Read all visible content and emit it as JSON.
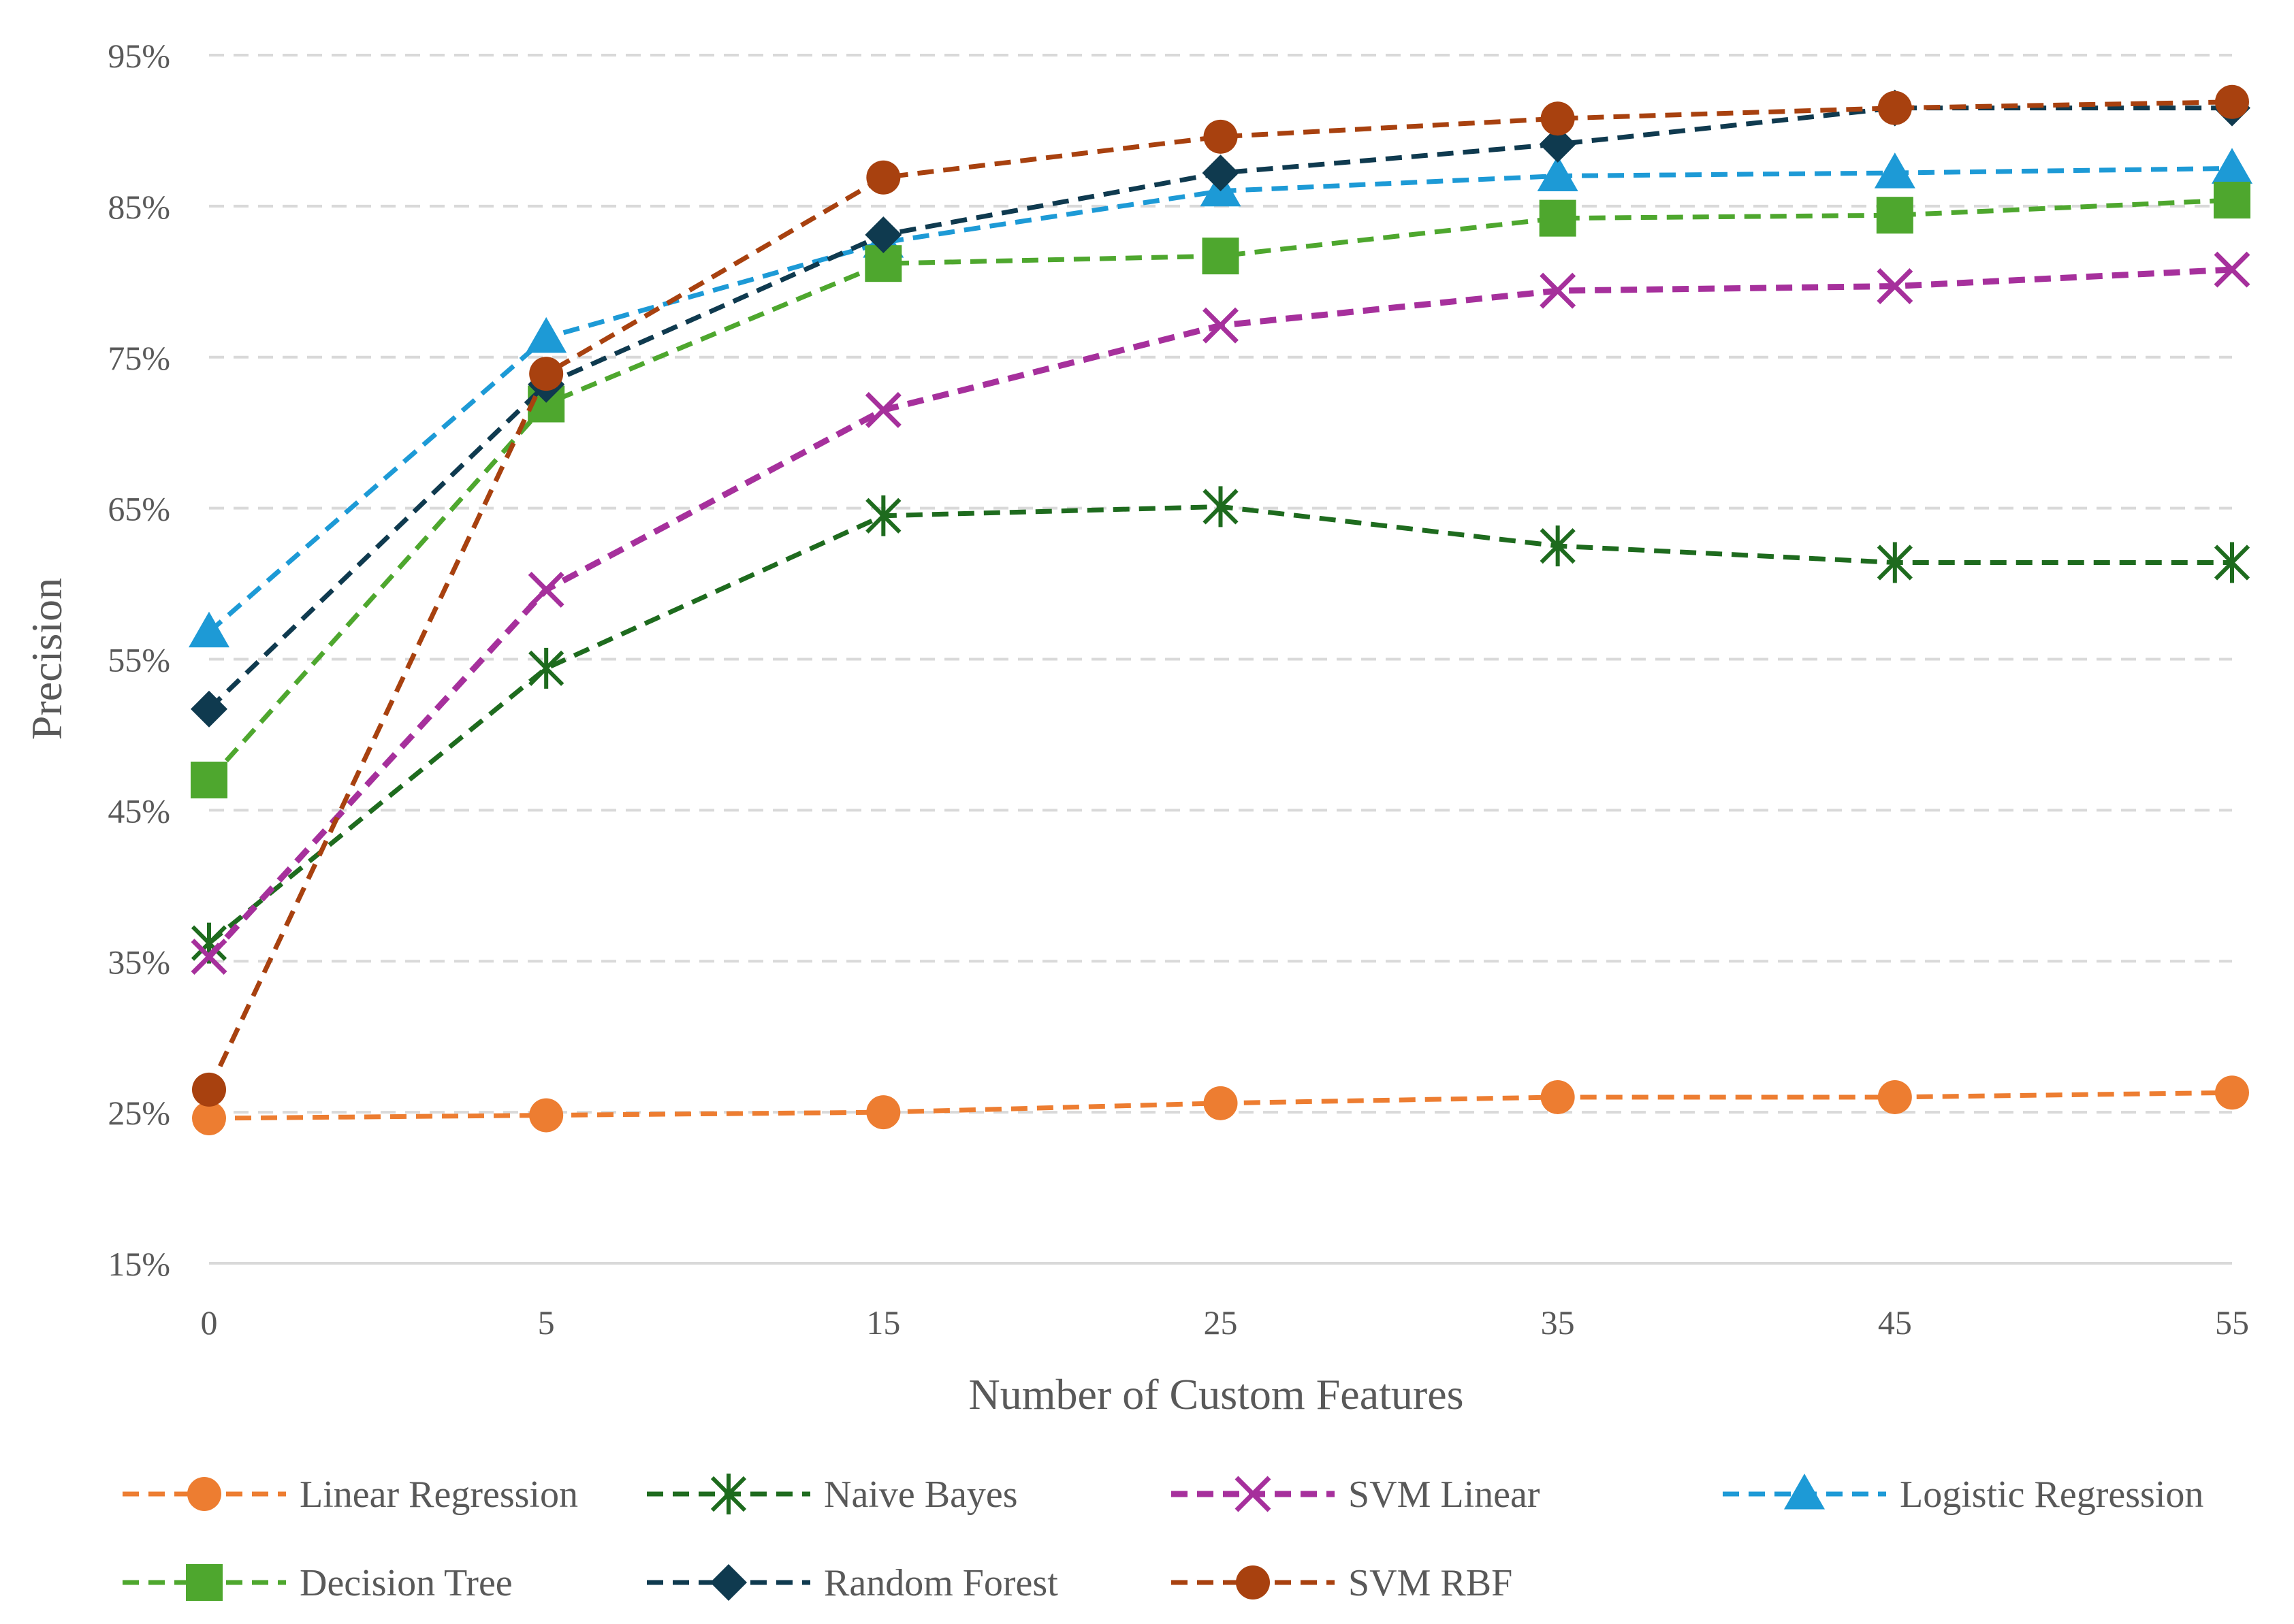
{
  "chart_data": {
    "type": "line",
    "title": "",
    "xlabel": "Number of Custom Features",
    "ylabel": "Precision",
    "categories": [
      "0",
      "5",
      "15",
      "25",
      "35",
      "45",
      "55"
    ],
    "ylim": [
      15,
      95
    ],
    "yticks": [
      15,
      25,
      35,
      45,
      55,
      65,
      75,
      85,
      95
    ],
    "ytick_labels": [
      "15%",
      "25%",
      "35%",
      "45%",
      "55%",
      "65%",
      "75%",
      "85%",
      "95%"
    ],
    "grid": "horizontal dashed",
    "legend_position": "bottom",
    "series": [
      {
        "name": "Linear Regression",
        "color": "#ED7D31",
        "marker": "circle",
        "values": [
          24.6,
          24.8,
          25.0,
          25.6,
          26.0,
          26.0,
          26.3
        ]
      },
      {
        "name": "Naive Bayes",
        "color": "#1E6B1E",
        "marker": "asterisk",
        "values": [
          36.2,
          54.4,
          64.5,
          65.1,
          62.5,
          61.4,
          61.4
        ]
      },
      {
        "name": "SVM Linear",
        "color": "#A6309C",
        "marker": "x",
        "values": [
          35.3,
          59.6,
          71.5,
          77.1,
          79.4,
          79.7,
          80.8
        ]
      },
      {
        "name": "Logistic Regression",
        "color": "#1D9AD6",
        "marker": "triangle",
        "values": [
          56.8,
          76.3,
          82.6,
          86.0,
          87.0,
          87.2,
          87.5
        ]
      },
      {
        "name": "Decision Tree",
        "color": "#4EA72E",
        "marker": "square",
        "values": [
          47.0,
          71.9,
          81.2,
          81.7,
          84.2,
          84.4,
          85.4
        ]
      },
      {
        "name": "Random Forest",
        "color": "#0F3A4F",
        "marker": "diamond",
        "values": [
          51.7,
          73.2,
          83.1,
          87.2,
          89.1,
          91.5,
          91.5
        ]
      },
      {
        "name": "SVM RBF",
        "color": "#A8410F",
        "marker": "circle",
        "values": [
          26.5,
          73.9,
          86.9,
          89.6,
          90.8,
          91.5,
          91.9
        ]
      }
    ]
  }
}
